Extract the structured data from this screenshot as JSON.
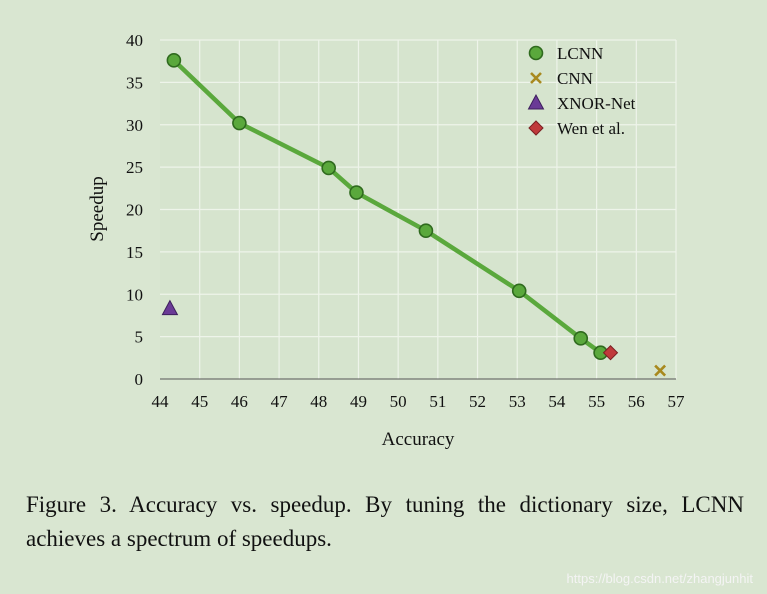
{
  "chart_data": {
    "type": "scatter",
    "title": "",
    "xlabel": "Accuracy",
    "ylabel": "Speedup",
    "xlim": [
      44,
      57
    ],
    "ylim": [
      0,
      40
    ],
    "x_ticks": [
      "44",
      "45",
      "46",
      "47",
      "48",
      "49",
      "50",
      "51",
      "52",
      "53",
      "54",
      "55",
      "56",
      "57"
    ],
    "y_ticks": [
      "0",
      "5",
      "10",
      "15",
      "20",
      "25",
      "30",
      "35",
      "40"
    ],
    "grid": true,
    "legend_position": "top-right",
    "series": [
      {
        "name": "LCNN",
        "marker": "circle",
        "connected": true,
        "color": "#5aa83c",
        "x": [
          44.35,
          46.0,
          48.25,
          48.95,
          50.7,
          53.05,
          54.6,
          55.1
        ],
        "y": [
          37.6,
          30.2,
          24.9,
          22.0,
          17.5,
          10.4,
          4.8,
          3.1
        ]
      },
      {
        "name": "CNN",
        "marker": "x",
        "connected": false,
        "color": "#a8891e",
        "x": [
          56.6
        ],
        "y": [
          1.0
        ]
      },
      {
        "name": "XNOR-Net",
        "marker": "triangle",
        "connected": false,
        "color": "#6a3a96",
        "x": [
          44.25
        ],
        "y": [
          8.3
        ]
      },
      {
        "name": "Wen et al.",
        "marker": "diamond",
        "connected": false,
        "color": "#c0393b",
        "x": [
          55.35
        ],
        "y": [
          3.1
        ]
      }
    ]
  },
  "caption": "Figure 3. Accuracy vs. speedup.  By tuning the dictionary size, LCNN achieves a spectrum of speedups.",
  "watermark": "https://blog.csdn.net/zhangjunhit"
}
